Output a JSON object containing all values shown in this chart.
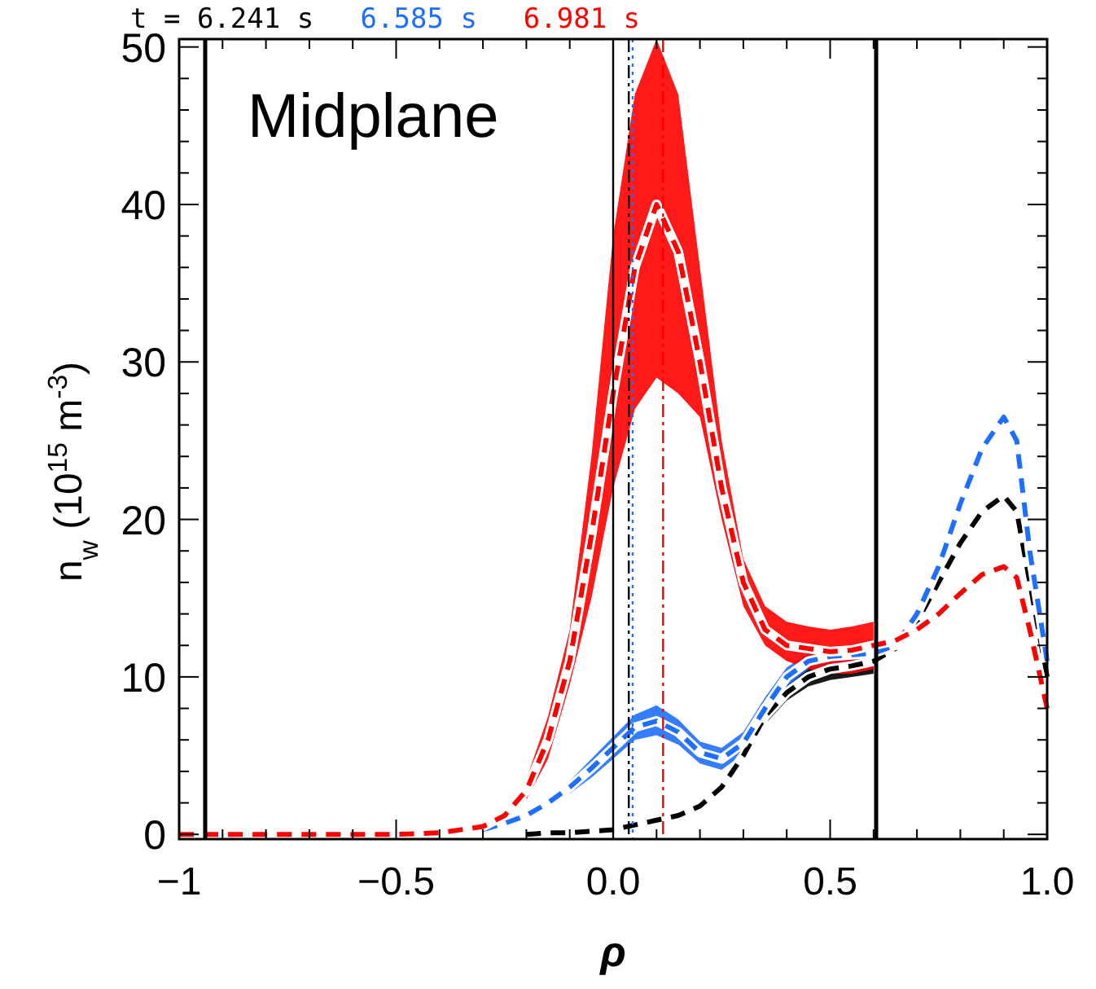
{
  "chart_data": {
    "type": "line",
    "title": "Midplane",
    "xlabel": "ρ",
    "ylabel": "n$_{w}$  (10$^{15}$ m$^{-3}$)",
    "x": [
      -1,
      -0.5,
      -0.4,
      -0.3,
      -0.25,
      -0.2,
      -0.15,
      -0.1,
      -0.05,
      0,
      0.05,
      0.1,
      0.15,
      0.2,
      0.25,
      0.3,
      0.35,
      0.4,
      0.45,
      0.5,
      0.55,
      0.6,
      0.65,
      0.7,
      0.75,
      0.8,
      0.85,
      0.9,
      0.93,
      0.96,
      1.0
    ],
    "series": [
      {
        "name": "t = 6.241 s",
        "color": "#000000",
        "values": [
          null,
          null,
          null,
          null,
          null,
          0,
          0.1,
          0.1,
          0.2,
          0.3,
          0.6,
          0.9,
          1.2,
          1.8,
          3,
          5,
          7.5,
          9,
          10,
          10.5,
          10.7,
          11,
          11.8,
          13.5,
          16,
          18.5,
          20.5,
          21.5,
          20.5,
          16,
          10
        ],
        "lower": [
          null,
          null,
          null,
          null,
          null,
          null,
          null,
          null,
          null,
          null,
          null,
          null,
          null,
          null,
          null,
          4.6,
          7,
          8.5,
          9.4,
          9.8,
          10,
          10.2,
          null,
          null,
          null,
          null,
          null,
          null,
          null,
          null,
          null
        ],
        "upper": [
          null,
          null,
          null,
          null,
          null,
          null,
          null,
          null,
          null,
          null,
          null,
          null,
          null,
          null,
          null,
          5.4,
          8,
          9.5,
          10.6,
          11,
          11.2,
          11.5,
          null,
          null,
          null,
          null,
          null,
          null,
          null,
          null,
          null
        ]
      },
      {
        "name": "6.585 s",
        "color": "#1f6fff",
        "values": [
          null,
          null,
          null,
          0.3,
          0.7,
          1.2,
          2,
          3,
          4.2,
          5.5,
          6.8,
          7.2,
          6.5,
          5.2,
          4.8,
          5.8,
          8,
          10,
          11,
          11.3,
          11.4,
          11.5,
          12,
          14,
          17,
          21,
          24.5,
          26.5,
          25,
          18,
          11
        ],
        "lower": [
          null,
          null,
          null,
          null,
          null,
          null,
          null,
          2.6,
          3.6,
          4.8,
          6,
          6.3,
          5.7,
          4.5,
          4.1,
          5.1,
          7.3,
          9.4,
          10.5,
          10.8,
          10.9,
          11,
          null,
          null,
          null,
          null,
          null,
          null,
          null,
          null,
          null
        ],
        "upper": [
          null,
          null,
          null,
          null,
          null,
          null,
          null,
          3.4,
          4.8,
          6.2,
          7.6,
          8.2,
          7.3,
          5.9,
          5.5,
          6.5,
          8.7,
          10.6,
          11.5,
          11.8,
          11.9,
          12,
          null,
          null,
          null,
          null,
          null,
          null,
          null,
          null,
          null
        ]
      },
      {
        "name": "6.981 s",
        "color": "#ff0000",
        "values": [
          0,
          0,
          0.1,
          0.5,
          1.2,
          2.8,
          6,
          11,
          19,
          28,
          36,
          40,
          37,
          30,
          22,
          16,
          13,
          12,
          11.8,
          11.6,
          11.7,
          12,
          12.3,
          13,
          14,
          15.3,
          16.5,
          17,
          16.3,
          13,
          8
        ],
        "lower": [
          null,
          null,
          null,
          null,
          null,
          2.2,
          4.8,
          9.5,
          15,
          22,
          27,
          29,
          28,
          26.5,
          20,
          14.5,
          12,
          11,
          10.5,
          10.2,
          10.2,
          10.5,
          null,
          null,
          null,
          null,
          null,
          null,
          null,
          null,
          null
        ],
        "upper": [
          null,
          null,
          null,
          null,
          null,
          3.5,
          7.5,
          13,
          24,
          38,
          47,
          50.5,
          47,
          36,
          25,
          17.5,
          14.5,
          13.5,
          13.2,
          13,
          13.2,
          13.5,
          null,
          null,
          null,
          null,
          null,
          null,
          null,
          null,
          null
        ]
      }
    ],
    "xlim": [
      -1,
      1
    ],
    "ylim": [
      -0.3,
      50.5
    ],
    "xticks": [
      -1.0,
      {
        "value": -0.9,
        "label": null
      },
      {
        "value": -0.8,
        "label": null
      },
      {
        "value": -0.7,
        "label": null
      },
      {
        "value": -0.6,
        "label": null
      },
      -0.5,
      {
        "value": -0.4,
        "label": null
      },
      {
        "value": -0.3,
        "label": null
      },
      {
        "value": -0.2,
        "label": null
      },
      {
        "value": -0.1,
        "label": null
      },
      {
        "value": 0,
        "label": "0.0"
      },
      {
        "value": 0.1,
        "label": null
      },
      {
        "value": 0.2,
        "label": null
      },
      {
        "value": 0.3,
        "label": null
      },
      {
        "value": 0.4,
        "label": null
      },
      0.5,
      {
        "value": 0.6,
        "label": null
      },
      {
        "value": 0.7,
        "label": null
      },
      {
        "value": 0.8,
        "label": null
      },
      {
        "value": 0.9,
        "label": null
      },
      {
        "value": 1,
        "label": "1.0"
      }
    ],
    "yticks": [
      0,
      10,
      20,
      30,
      40,
      50
    ],
    "ref_lines": [
      {
        "axis": "x",
        "value": -0.94,
        "color": "#000000",
        "line_style": "solid"
      },
      {
        "axis": "x",
        "value": 0,
        "color": "#000000",
        "line_style": "solid"
      },
      {
        "axis": "x",
        "value": 0.606,
        "color": "#000000",
        "line_style": "solid"
      },
      {
        "axis": "x",
        "value": 0.036,
        "color": "#000000",
        "line_style": "dashdot"
      },
      {
        "axis": "x",
        "value": 0.045,
        "color": "#1f6fff",
        "line_style": "dotted"
      },
      {
        "axis": "x",
        "value": 0.115,
        "color": "#ff0000",
        "line_style": "dashdot"
      }
    ],
    "line_style": "dashed",
    "marker": "none",
    "grid": false,
    "legend": "top left"
  }
}
